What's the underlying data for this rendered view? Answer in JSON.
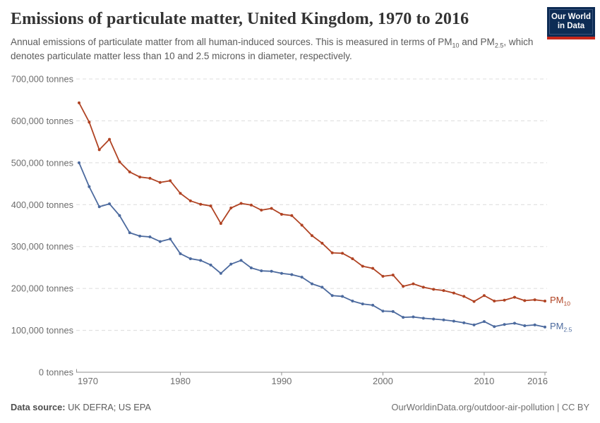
{
  "header": {
    "title": "Emissions of particulate matter, United Kingdom, 1970 to 2016",
    "logo": {
      "line1": "Our World",
      "line2": "in Data"
    }
  },
  "subtitle": {
    "part1": "Annual emissions of particulate matter from all human-induced sources. This is measured in terms of PM",
    "sub1": "10",
    "part2": " and PM",
    "sub2": "2.5",
    "part3": ", which denotes particulate matter less than 10 and 2.5 microns in diameter, respectively."
  },
  "chart_data": {
    "type": "line",
    "title": "Emissions of particulate matter, United Kingdom, 1970 to 2016",
    "xlabel": "",
    "ylabel": "tonnes",
    "xlim": [
      1970,
      2016
    ],
    "ylim": [
      0,
      700000
    ],
    "grid": "horizontal-dashed",
    "legend_position": "end-of-line-labels",
    "x": [
      1970,
      1971,
      1972,
      1973,
      1974,
      1975,
      1976,
      1977,
      1978,
      1979,
      1980,
      1981,
      1982,
      1983,
      1984,
      1985,
      1986,
      1987,
      1988,
      1989,
      1990,
      1991,
      1992,
      1993,
      1994,
      1995,
      1996,
      1997,
      1998,
      1999,
      2000,
      2001,
      2002,
      2003,
      2004,
      2005,
      2006,
      2007,
      2008,
      2009,
      2010,
      2011,
      2012,
      2013,
      2014,
      2015,
      2016
    ],
    "series": [
      {
        "name": "PM10",
        "label_base": "PM",
        "label_sub": "10",
        "color": "#b04323",
        "values": [
          643000,
          597000,
          531000,
          556000,
          502000,
          478000,
          466000,
          463000,
          453000,
          457000,
          427000,
          409000,
          401000,
          397000,
          355000,
          392000,
          403000,
          399000,
          387000,
          391000,
          377000,
          374000,
          351000,
          326000,
          308000,
          285000,
          284000,
          271000,
          253000,
          248000,
          229000,
          232000,
          205000,
          211000,
          203000,
          198000,
          195000,
          189000,
          181000,
          169000,
          183000,
          170000,
          172000,
          179000,
          171000,
          173000,
          170000
        ]
      },
      {
        "name": "PM2.5",
        "label_base": "PM",
        "label_sub": "2.5",
        "color": "#4c6a9e",
        "values": [
          500000,
          443000,
          395000,
          402000,
          374000,
          333000,
          325000,
          323000,
          312000,
          318000,
          283000,
          271000,
          267000,
          256000,
          236000,
          258000,
          267000,
          249000,
          242000,
          241000,
          236000,
          233000,
          227000,
          211000,
          203000,
          183000,
          181000,
          170000,
          163000,
          160000,
          146000,
          145000,
          131000,
          132000,
          129000,
          127000,
          125000,
          122000,
          118000,
          113000,
          121000,
          109000,
          114000,
          117000,
          111000,
          113000,
          108000
        ]
      }
    ],
    "y_ticks": [
      {
        "value": 0,
        "label": "0 tonnes"
      },
      {
        "value": 100000,
        "label": "100,000 tonnes"
      },
      {
        "value": 200000,
        "label": "200,000 tonnes"
      },
      {
        "value": 300000,
        "label": "300,000 tonnes"
      },
      {
        "value": 400000,
        "label": "400,000 tonnes"
      },
      {
        "value": 500000,
        "label": "500,000 tonnes"
      },
      {
        "value": 600000,
        "label": "600,000 tonnes"
      },
      {
        "value": 700000,
        "label": "700,000 tonnes"
      }
    ],
    "x_ticks": [
      {
        "year": 1970,
        "label": "1970",
        "align": "start"
      },
      {
        "year": 1980,
        "label": "1980",
        "align": "middle"
      },
      {
        "year": 1990,
        "label": "1990",
        "align": "middle"
      },
      {
        "year": 2000,
        "label": "2000",
        "align": "middle"
      },
      {
        "year": 2010,
        "label": "2010",
        "align": "middle"
      },
      {
        "year": 2016,
        "label": "2016",
        "align": "end"
      }
    ]
  },
  "footer": {
    "source_label": "Data source:",
    "source_value": " UK DEFRA; US EPA",
    "credit": "OurWorldinData.org/outdoor-air-pollution | CC BY"
  },
  "colors": {
    "pm10": "#b04323",
    "pm25": "#4c6a9e",
    "gridline": "#dcdcdc",
    "axis": "#8f8f8f",
    "tick_label": "#6e6e6e",
    "title": "#333333",
    "subtitle": "#5b5b5b",
    "logo_bg": "#0d2c55",
    "logo_stripe": "#c7271b"
  }
}
